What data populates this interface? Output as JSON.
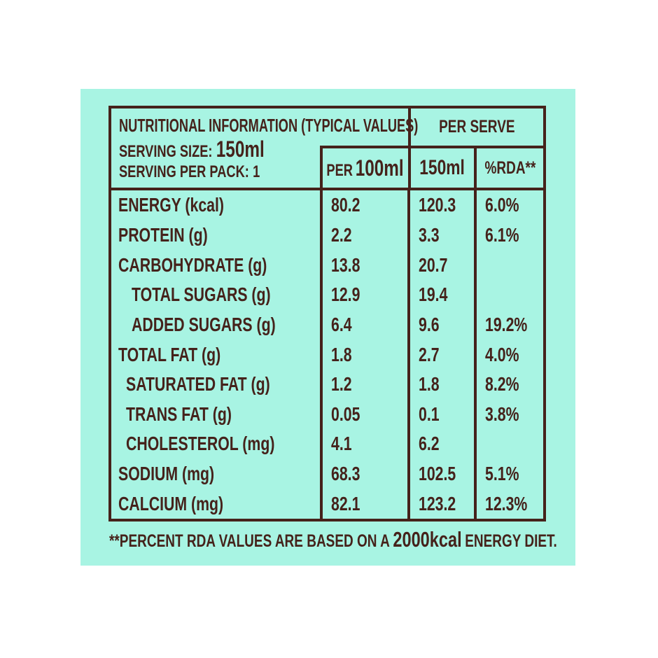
{
  "colors": {
    "page_background": "#ffffff",
    "panel_background": "#a8f4e3",
    "ink": "#45221b"
  },
  "table": {
    "header": {
      "title": "NUTRITIONAL INFORMATION (TYPICAL VALUES)",
      "serving_size_label": "SERVING SIZE:",
      "serving_size_value": "150ml",
      "serving_per_pack_label": "SERVING PER PACK:",
      "serving_per_pack_value": "1",
      "per_serve": "PER SERVE",
      "col_per_prefix": "PER",
      "col_per_unit": "100ml",
      "col_serve_unit": "150ml",
      "col_rda": "%RDA**"
    },
    "rows": [
      {
        "label": "ENERGY (kcal)",
        "indent": 0,
        "per100": "80.2",
        "per150": "120.3",
        "rda": "6.0%"
      },
      {
        "label": "PROTEIN (g)",
        "indent": 0,
        "per100": "2.2",
        "per150": "3.3",
        "rda": "6.1%"
      },
      {
        "label": "CARBOHYDRATE (g)",
        "indent": 0,
        "per100": "13.8",
        "per150": "20.7",
        "rda": ""
      },
      {
        "label": "TOTAL SUGARS (g)",
        "indent": 2,
        "per100": "12.9",
        "per150": "19.4",
        "rda": ""
      },
      {
        "label": "ADDED SUGARS (g)",
        "indent": 2,
        "per100": "6.4",
        "per150": "9.6",
        "rda": "19.2%"
      },
      {
        "label": "TOTAL FAT (g)",
        "indent": 0,
        "per100": "1.8",
        "per150": "2.7",
        "rda": "4.0%"
      },
      {
        "label": "SATURATED FAT (g)",
        "indent": 1,
        "per100": "1.2",
        "per150": "1.8",
        "rda": "8.2%"
      },
      {
        "label": "TRANS FAT (g)",
        "indent": 1,
        "per100": "0.05",
        "per150": "0.1",
        "rda": "3.8%"
      },
      {
        "label": "CHOLESTEROL (mg)",
        "indent": 1,
        "per100": "4.1",
        "per150": "6.2",
        "rda": ""
      },
      {
        "label": "SODIUM (mg)",
        "indent": 0,
        "per100": "68.3",
        "per150": "102.5",
        "rda": "5.1%"
      },
      {
        "label": "CALCIUM (mg)",
        "indent": 0,
        "per100": "82.1",
        "per150": "123.2",
        "rda": "12.3%"
      }
    ]
  },
  "footnote": {
    "prefix": "**PERCENT RDA VALUES ARE BASED ON A",
    "highlight": "2000kcal",
    "suffix": "ENERGY DIET."
  }
}
